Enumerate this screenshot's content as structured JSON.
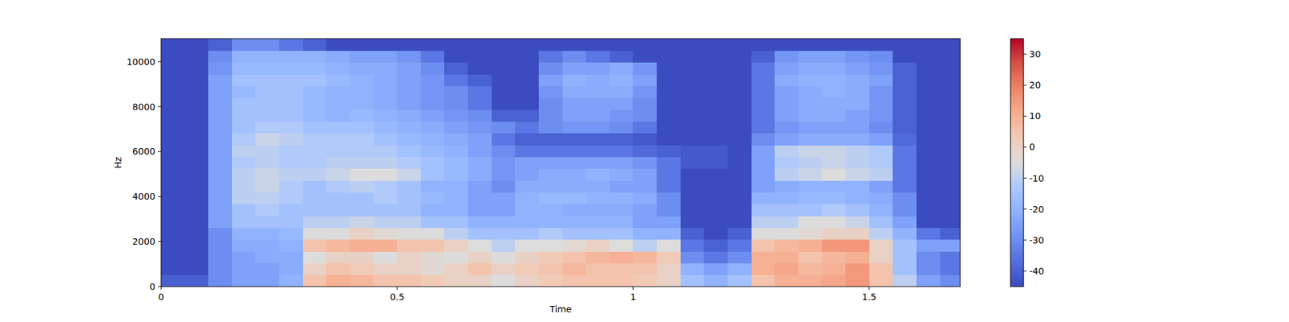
{
  "chart_data": {
    "type": "heatmap",
    "x_label": "Time",
    "y_label": "Hz",
    "xlim": [
      0,
      1.693
    ],
    "ylim": [
      0,
      11025
    ],
    "xticks": [
      0,
      0.5,
      1,
      1.5
    ],
    "yticks": [
      0,
      2000,
      4000,
      6000,
      8000,
      10000
    ],
    "x_bins": [
      0,
      0.05,
      0.1,
      0.15,
      0.2,
      0.25,
      0.3,
      0.35,
      0.4,
      0.45,
      0.5,
      0.55,
      0.6,
      0.65,
      0.7,
      0.75,
      0.8,
      0.85,
      0.9,
      0.95,
      1.0,
      1.05,
      1.1,
      1.15,
      1.2,
      1.25,
      1.3,
      1.35,
      1.4,
      1.45,
      1.5,
      1.55,
      1.6,
      1.65,
      1.7
    ],
    "y_bins": [
      0,
      525,
      1050,
      1575,
      2100,
      2625,
      3150,
      3675,
      4200,
      4725,
      5250,
      5775,
      6300,
      6825,
      7350,
      7875,
      8400,
      8925,
      9450,
      9975,
      10500,
      11025
    ],
    "colorbar_range": [
      -45,
      35
    ],
    "colorbar_ticks": [
      -40,
      -30,
      -20,
      -10,
      0,
      10,
      20,
      30
    ],
    "cells": [
      [
        -40,
        -40,
        -30,
        -25,
        -25,
        -20,
        5,
        10,
        8,
        5,
        5,
        3,
        0,
        0,
        -5,
        0,
        3,
        5,
        5,
        5,
        3,
        0,
        -15,
        -20,
        -15,
        5,
        10,
        10,
        12,
        15,
        5,
        -10,
        -25,
        -30
      ],
      [
        -45,
        -45,
        -30,
        -25,
        -25,
        -22,
        0,
        5,
        3,
        0,
        0,
        -3,
        0,
        5,
        0,
        3,
        5,
        8,
        5,
        5,
        5,
        0,
        -20,
        -25,
        -20,
        10,
        12,
        8,
        10,
        15,
        5,
        -15,
        -30,
        -35
      ],
      [
        -45,
        -45,
        -30,
        -25,
        -22,
        -22,
        -5,
        0,
        0,
        -5,
        0,
        -3,
        -5,
        0,
        -5,
        0,
        3,
        5,
        8,
        10,
        8,
        3,
        -30,
        -35,
        -30,
        10,
        10,
        5,
        8,
        10,
        0,
        -15,
        -30,
        -35
      ],
      [
        -45,
        -45,
        -30,
        -22,
        -22,
        -20,
        5,
        8,
        10,
        10,
        5,
        5,
        0,
        -5,
        -10,
        -5,
        -5,
        -3,
        0,
        -5,
        -10,
        -5,
        -35,
        -40,
        -35,
        5,
        8,
        10,
        15,
        15,
        0,
        -15,
        -25,
        -25
      ],
      [
        -45,
        -45,
        -30,
        -20,
        -20,
        -18,
        -5,
        -5,
        0,
        -3,
        -5,
        -5,
        -10,
        -15,
        -15,
        -15,
        -12,
        -15,
        -15,
        -15,
        -20,
        -20,
        -40,
        -45,
        -40,
        -5,
        -5,
        -3,
        0,
        0,
        -10,
        -20,
        -35,
        -40
      ],
      [
        -45,
        -45,
        -25,
        -15,
        -15,
        -15,
        -10,
        -10,
        -8,
        -10,
        -10,
        -15,
        -15,
        -20,
        -20,
        -20,
        -20,
        -20,
        -20,
        -20,
        -25,
        -25,
        -45,
        -45,
        -45,
        -10,
        -10,
        -5,
        -5,
        -8,
        -15,
        -25,
        -45,
        -45
      ],
      [
        -45,
        -45,
        -25,
        -15,
        -12,
        -15,
        -15,
        -15,
        -15,
        -15,
        -15,
        -20,
        -20,
        -25,
        -25,
        -20,
        -20,
        -22,
        -22,
        -22,
        -25,
        -30,
        -45,
        -45,
        -45,
        -15,
        -15,
        -15,
        -12,
        -15,
        -20,
        -30,
        -45,
        -45
      ],
      [
        -45,
        -45,
        -25,
        -10,
        -10,
        -12,
        -15,
        -15,
        -15,
        -12,
        -15,
        -18,
        -20,
        -25,
        -25,
        -20,
        -18,
        -18,
        -20,
        -20,
        -22,
        -30,
        -45,
        -45,
        -45,
        -20,
        -20,
        -18,
        -18,
        -20,
        -22,
        -30,
        -45,
        -45
      ],
      [
        -45,
        -45,
        -25,
        -10,
        -8,
        -12,
        -15,
        -12,
        -10,
        -12,
        -15,
        -20,
        -20,
        -25,
        -30,
        -22,
        -22,
        -22,
        -22,
        -25,
        -25,
        -35,
        -45,
        -45,
        -45,
        -25,
        -22,
        -20,
        -20,
        -20,
        -25,
        -35,
        -45,
        -45
      ],
      [
        -45,
        -45,
        -25,
        -10,
        -8,
        -10,
        -10,
        -8,
        -5,
        -5,
        -8,
        -15,
        -18,
        -22,
        -28,
        -25,
        -22,
        -22,
        -20,
        -22,
        -25,
        -35,
        -45,
        -45,
        -45,
        -25,
        -10,
        -8,
        -5,
        -8,
        -10,
        -35,
        -45,
        -45
      ],
      [
        -45,
        -45,
        -25,
        -12,
        -10,
        -12,
        -12,
        -10,
        -10,
        -10,
        -12,
        -15,
        -18,
        -22,
        -28,
        -25,
        -25,
        -25,
        -25,
        -25,
        -28,
        -35,
        -42,
        -42,
        -45,
        -25,
        -12,
        -10,
        -8,
        -10,
        -12,
        -35,
        -45,
        -45
      ],
      [
        -45,
        -45,
        -25,
        -10,
        -10,
        -12,
        -12,
        -12,
        -12,
        -12,
        -15,
        -18,
        -20,
        -25,
        -30,
        -35,
        -35,
        -35,
        -35,
        -35,
        -38,
        -40,
        -42,
        -42,
        -45,
        -25,
        -10,
        -8,
        -8,
        -10,
        -12,
        -35,
        -45,
        -45
      ],
      [
        -45,
        -45,
        -25,
        -12,
        -8,
        -10,
        -12,
        -12,
        -12,
        -15,
        -18,
        -20,
        -22,
        -25,
        -35,
        -40,
        -40,
        -40,
        -40,
        -40,
        -42,
        -45,
        -45,
        -45,
        -45,
        -30,
        -25,
        -22,
        -22,
        -22,
        -25,
        -38,
        -45,
        -45
      ],
      [
        -45,
        -45,
        -25,
        -15,
        -12,
        -12,
        -15,
        -15,
        -15,
        -18,
        -20,
        -22,
        -25,
        -28,
        -30,
        -35,
        -30,
        -28,
        -28,
        -30,
        -35,
        -45,
        -45,
        -45,
        -45,
        -35,
        -28,
        -25,
        -25,
        -25,
        -30,
        -40,
        -45,
        -45
      ],
      [
        -45,
        -45,
        -25,
        -15,
        -15,
        -15,
        -18,
        -20,
        -18,
        -20,
        -22,
        -25,
        -28,
        -30,
        -40,
        -40,
        -30,
        -25,
        -25,
        -28,
        -30,
        -45,
        -45,
        -45,
        -45,
        -35,
        -25,
        -22,
        -22,
        -25,
        -28,
        -40,
        -45,
        -45
      ],
      [
        -45,
        -45,
        -25,
        -15,
        -15,
        -15,
        -18,
        -20,
        -20,
        -22,
        -25,
        -28,
        -30,
        -35,
        -45,
        -45,
        -30,
        -25,
        -25,
        -25,
        -30,
        -45,
        -45,
        -45,
        -45,
        -35,
        -25,
        -22,
        -22,
        -22,
        -28,
        -40,
        -45,
        -45
      ],
      [
        -45,
        -45,
        -25,
        -18,
        -15,
        -15,
        -18,
        -20,
        -20,
        -22,
        -25,
        -28,
        -30,
        -35,
        -45,
        -45,
        -28,
        -22,
        -22,
        -22,
        -28,
        -45,
        -45,
        -45,
        -45,
        -35,
        -25,
        -22,
        -20,
        -22,
        -28,
        -40,
        -45,
        -45
      ],
      [
        -45,
        -45,
        -25,
        -15,
        -15,
        -15,
        -15,
        -18,
        -20,
        -22,
        -25,
        -28,
        -35,
        -40,
        -45,
        -45,
        -25,
        -20,
        -22,
        -20,
        -25,
        -45,
        -45,
        -45,
        -45,
        -35,
        -22,
        -20,
        -20,
        -22,
        -25,
        -40,
        -45,
        -45
      ],
      [
        -45,
        -45,
        -28,
        -18,
        -18,
        -18,
        -18,
        -20,
        -22,
        -22,
        -25,
        -30,
        -40,
        -45,
        -45,
        -45,
        -30,
        -25,
        -25,
        -22,
        -28,
        -45,
        -45,
        -45,
        -45,
        -35,
        -25,
        -22,
        -22,
        -25,
        -28,
        -40,
        -45,
        -45
      ],
      [
        -45,
        -45,
        -30,
        -20,
        -20,
        -20,
        -20,
        -22,
        -25,
        -25,
        -28,
        -35,
        -45,
        -45,
        -45,
        -45,
        -35,
        -30,
        -35,
        -40,
        -45,
        -45,
        -45,
        -45,
        -45,
        -40,
        -28,
        -25,
        -25,
        -28,
        -30,
        -45,
        -45,
        -45
      ],
      [
        -45,
        -45,
        -40,
        -30,
        -30,
        -35,
        -40,
        -45,
        -45,
        -45,
        -45,
        -45,
        -45,
        -45,
        -45,
        -45,
        -45,
        -45,
        -45,
        -45,
        -45,
        -45,
        -45,
        -45,
        -45,
        -45,
        -45,
        -45,
        -45,
        -45,
        -45,
        -45,
        -45,
        -45
      ]
    ]
  }
}
